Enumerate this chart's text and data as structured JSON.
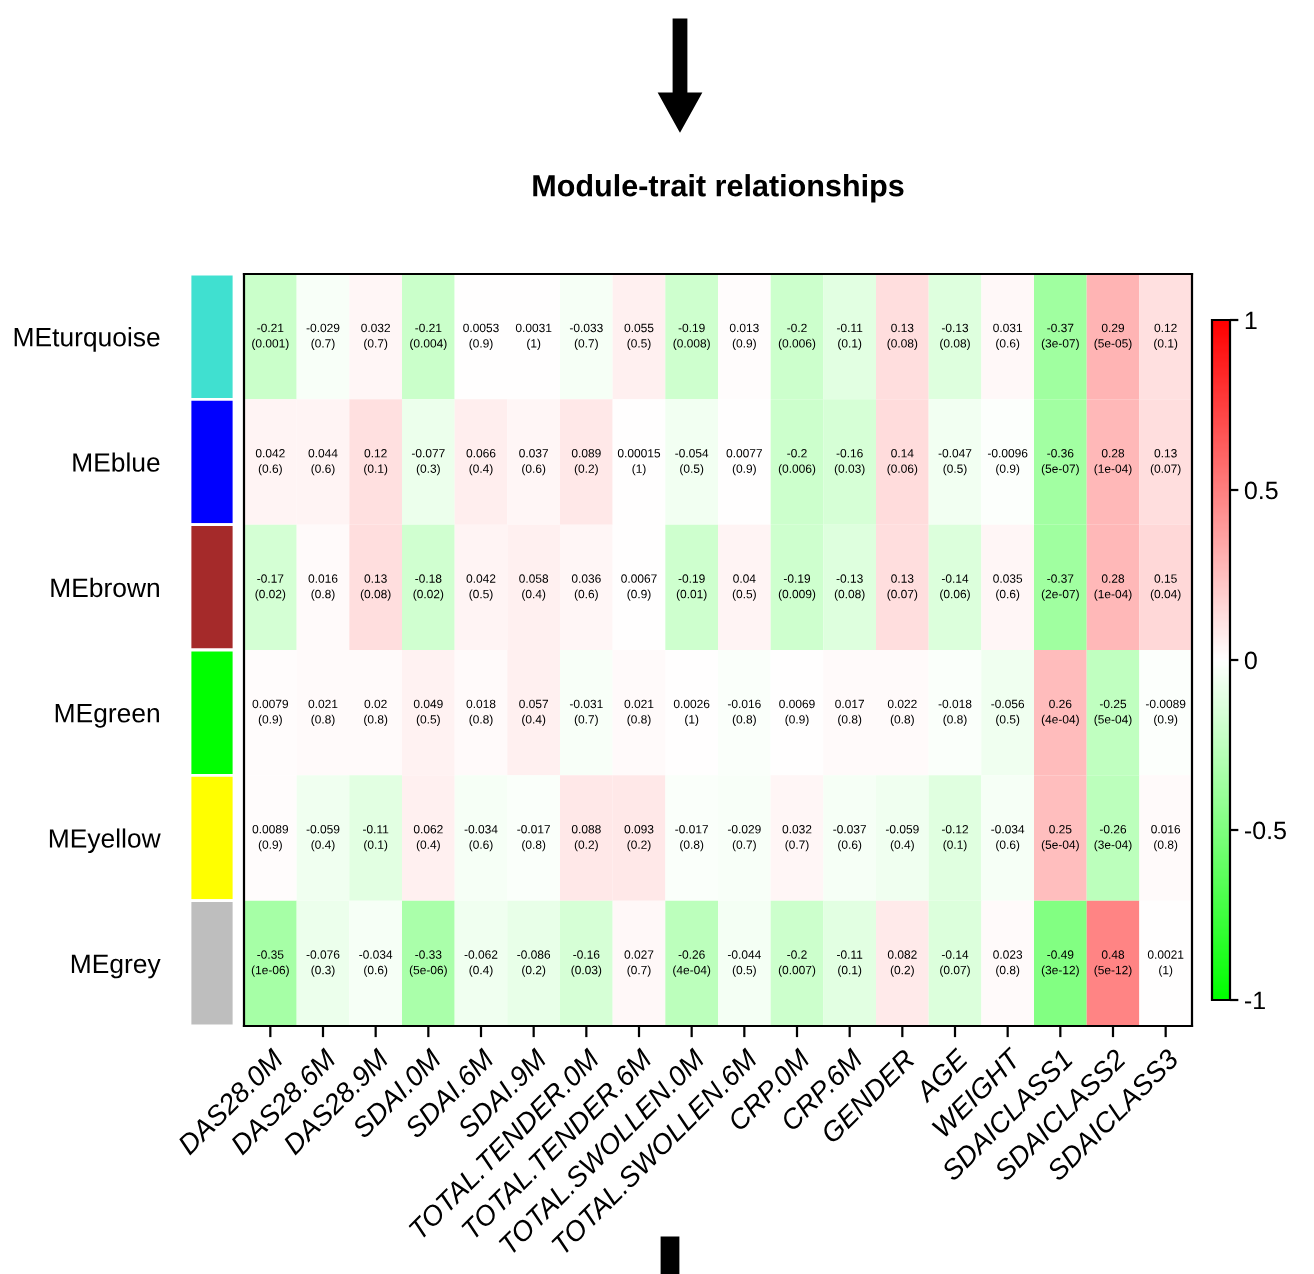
{
  "chart_data": {
    "type": "heatmap",
    "title": "Module-trait relationships",
    "categories": [
      "DAS28.0M",
      "DAS28.6M",
      "DAS28.9M",
      "SDAI.0M",
      "SDAI.6M",
      "SDAI.9M",
      "TOTAL.TENDER.0M",
      "TOTAL.TENDER.6M",
      "TOTAL.SWOLLEN.0M",
      "TOTAL.SWOLLEN.6M",
      "CRP.0M",
      "CRP.6M",
      "GENDER",
      "AGE",
      "WEIGHT",
      "SDAICLASS1",
      "SDAICLASS2",
      "SDAICLASS3"
    ],
    "y_categories": [
      "MEturquoise",
      "MEblue",
      "MEbrown",
      "MEgreen",
      "MEyellow",
      "MEgrey"
    ],
    "cells": [
      [
        -0.21,
        -0.029,
        0.032,
        -0.21,
        0.0053,
        0.0031,
        -0.033,
        0.055,
        -0.19,
        0.013,
        -0.2,
        -0.11,
        0.13,
        -0.13,
        0.031,
        -0.37,
        0.29,
        0.12
      ],
      [
        0.042,
        0.044,
        0.12,
        -0.077,
        0.066,
        0.037,
        0.089,
        0.00015,
        -0.054,
        0.0077,
        -0.2,
        -0.16,
        0.14,
        -0.047,
        -0.0096,
        -0.36,
        0.28,
        0.13
      ],
      [
        -0.17,
        0.016,
        0.13,
        -0.18,
        0.042,
        0.058,
        0.036,
        0.0067,
        -0.19,
        0.04,
        -0.19,
        -0.13,
        0.13,
        -0.14,
        0.035,
        -0.37,
        0.28,
        0.15
      ],
      [
        0.0079,
        0.021,
        0.02,
        0.049,
        0.018,
        0.057,
        -0.031,
        0.021,
        0.0026,
        -0.016,
        0.0069,
        0.017,
        0.022,
        -0.018,
        -0.056,
        0.26,
        -0.25,
        -0.0089
      ],
      [
        0.0089,
        -0.059,
        -0.11,
        0.062,
        -0.034,
        -0.017,
        0.088,
        0.093,
        -0.017,
        -0.029,
        0.032,
        -0.037,
        -0.059,
        -0.12,
        -0.034,
        0.25,
        -0.26,
        0.016
      ],
      [
        -0.35,
        -0.076,
        -0.034,
        -0.33,
        -0.062,
        -0.086,
        -0.16,
        0.027,
        -0.26,
        -0.044,
        -0.2,
        -0.11,
        0.082,
        -0.14,
        0.023,
        -0.49,
        0.48,
        0.0021
      ]
    ],
    "cell_labels": [
      [
        "-0.21\n(0.001)",
        "-0.029\n(0.7)",
        "0.032\n(0.7)",
        "-0.21\n(0.004)",
        "0.0053\n(0.9)",
        "0.0031\n(1)",
        "-0.033\n(0.7)",
        "0.055\n(0.5)",
        "-0.19\n(0.008)",
        "0.013\n(0.9)",
        "-0.2\n(0.006)",
        "-0.11\n(0.1)",
        "0.13\n(0.08)",
        "-0.13\n(0.08)",
        "0.031\n(0.6)",
        "-0.37\n(3e-07)",
        "0.29\n(5e-05)",
        "0.12\n(0.1)"
      ],
      [
        "0.042\n(0.6)",
        "0.044\n(0.6)",
        "0.12\n(0.1)",
        "-0.077\n(0.3)",
        "0.066\n(0.4)",
        "0.037\n(0.6)",
        "0.089\n(0.2)",
        "0.00015\n(1)",
        "-0.054\n(0.5)",
        "0.0077\n(0.9)",
        "-0.2\n(0.006)",
        "-0.16\n(0.03)",
        "0.14\n(0.06)",
        "-0.047\n(0.5)",
        "-0.0096\n(0.9)",
        "-0.36\n(5e-07)",
        "0.28\n(1e-04)",
        "0.13\n(0.07)"
      ],
      [
        "-0.17\n(0.02)",
        "0.016\n(0.8)",
        "0.13\n(0.08)",
        "-0.18\n(0.02)",
        "0.042\n(0.5)",
        "0.058\n(0.4)",
        "0.036\n(0.6)",
        "0.0067\n(0.9)",
        "-0.19\n(0.01)",
        "0.04\n(0.5)",
        "-0.19\n(0.009)",
        "-0.13\n(0.08)",
        "0.13\n(0.07)",
        "-0.14\n(0.06)",
        "0.035\n(0.6)",
        "-0.37\n(2e-07)",
        "0.28\n(1e-04)",
        "0.15\n(0.04)"
      ],
      [
        "0.0079\n(0.9)",
        "0.021\n(0.8)",
        "0.02\n(0.8)",
        "0.049\n(0.5)",
        "0.018\n(0.8)",
        "0.057\n(0.4)",
        "-0.031\n(0.7)",
        "0.021\n(0.8)",
        "0.0026\n(1)",
        "-0.016\n(0.8)",
        "0.0069\n(0.9)",
        "0.017\n(0.8)",
        "0.022\n(0.8)",
        "-0.018\n(0.8)",
        "-0.056\n(0.5)",
        "0.26\n(4e-04)",
        "-0.25\n(5e-04)",
        "-0.0089\n(0.9)"
      ],
      [
        "0.0089\n(0.9)",
        "-0.059\n(0.4)",
        "-0.11\n(0.1)",
        "0.062\n(0.4)",
        "-0.034\n(0.6)",
        "-0.017\n(0.8)",
        "0.088\n(0.2)",
        "0.093\n(0.2)",
        "-0.017\n(0.8)",
        "-0.029\n(0.7)",
        "0.032\n(0.7)",
        "-0.037\n(0.6)",
        "-0.059\n(0.4)",
        "-0.12\n(0.1)",
        "-0.034\n(0.6)",
        "0.25\n(5e-04)",
        "-0.26\n(3e-04)",
        "0.016\n(0.8)"
      ],
      [
        "-0.35\n(1e-06)",
        "-0.076\n(0.3)",
        "-0.034\n(0.6)",
        "-0.33\n(5e-06)",
        "-0.062\n(0.4)",
        "-0.086\n(0.2)",
        "-0.16\n(0.03)",
        "0.027\n(0.7)",
        "-0.26\n(4e-04)",
        "-0.044\n(0.5)",
        "-0.2\n(0.007)",
        "-0.11\n(0.1)",
        "0.082\n(0.2)",
        "-0.14\n(0.07)",
        "0.023\n(0.8)",
        "-0.49\n(3e-12)",
        "0.48\n(5e-12)",
        "0.0021\n(1)"
      ]
    ],
    "colors": [
      "#40e0d0",
      "#0000ff",
      "#a52a2a",
      "#00ff00",
      "#ffff00",
      "#bebebe"
    ],
    "clim": [
      -1,
      1
    ],
    "cticks": [
      -1,
      -0.5,
      0,
      0.5,
      1
    ]
  }
}
